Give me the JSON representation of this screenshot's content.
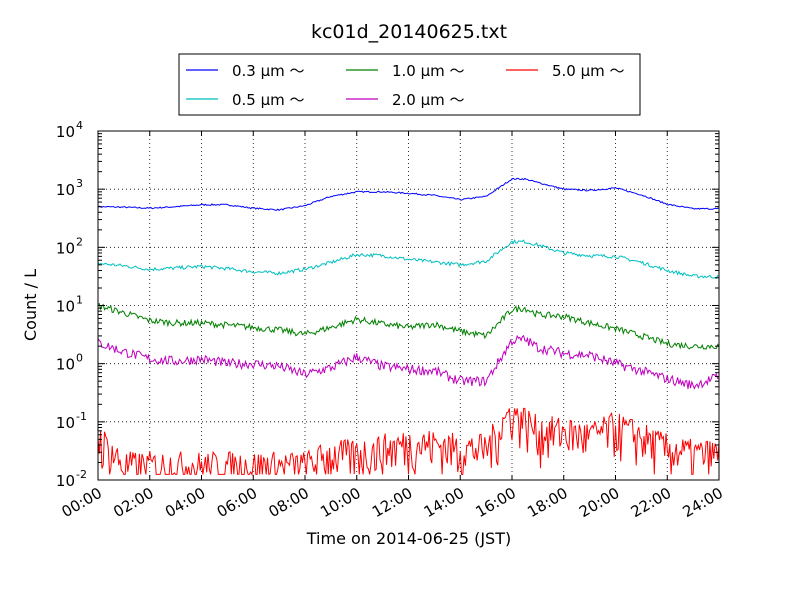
{
  "chart_data": {
    "type": "line",
    "title": "kc01d_20140625.txt",
    "xlabel": "Time on 2014-06-25 (JST)",
    "ylabel": "Count / L",
    "yscale": "log",
    "ylim": [
      0.01,
      10000
    ],
    "xlim": [
      0,
      24
    ],
    "grid": true,
    "legend_position": "top",
    "x_ticks": [
      "00:00",
      "02:00",
      "04:00",
      "06:00",
      "08:00",
      "10:00",
      "12:00",
      "14:00",
      "16:00",
      "18:00",
      "20:00",
      "22:00",
      "24:00"
    ],
    "y_ticks": [
      {
        "base": "10",
        "exp": "-2",
        "value": 0.01
      },
      {
        "base": "10",
        "exp": "-1",
        "value": 0.1
      },
      {
        "base": "10",
        "exp": "0",
        "value": 1
      },
      {
        "base": "10",
        "exp": "1",
        "value": 10
      },
      {
        "base": "10",
        "exp": "2",
        "value": 100
      },
      {
        "base": "10",
        "exp": "3",
        "value": 1000
      },
      {
        "base": "10",
        "exp": "4",
        "value": 10000
      }
    ],
    "x_hours": [
      0,
      1,
      2,
      3,
      4,
      5,
      6,
      7,
      8,
      9,
      10,
      11,
      12,
      13,
      14,
      15,
      16,
      16.5,
      17,
      18,
      19,
      20,
      21,
      22,
      23,
      24
    ],
    "series": [
      {
        "name": "0.3 μm ～",
        "color": "#0000ff",
        "values": [
          500,
          490,
          470,
          500,
          540,
          540,
          470,
          440,
          520,
          750,
          900,
          900,
          850,
          780,
          660,
          750,
          1500,
          1500,
          1300,
          1000,
          950,
          1050,
          800,
          550,
          460,
          460
        ]
      },
      {
        "name": "0.5 μm ～",
        "color": "#00bfbf",
        "values": [
          53,
          48,
          42,
          44,
          47,
          43,
          38,
          36,
          42,
          55,
          75,
          72,
          62,
          56,
          50,
          58,
          125,
          125,
          110,
          80,
          72,
          70,
          55,
          40,
          32,
          31
        ]
      },
      {
        "name": "1.0 μm ～",
        "color": "#008000",
        "values": [
          10,
          7.5,
          5.5,
          5,
          5,
          4.6,
          4.2,
          3.8,
          3.2,
          4.2,
          5.8,
          4.8,
          4.2,
          4.8,
          3.6,
          3.0,
          8.5,
          9,
          7.0,
          6.5,
          5.0,
          4.0,
          3.0,
          2.2,
          2.0,
          2.0
        ]
      },
      {
        "name": "2.0 μm ～",
        "color": "#bf00bf",
        "values": [
          2.3,
          1.6,
          1.2,
          1.1,
          1.2,
          1.0,
          1.0,
          0.9,
          0.65,
          0.85,
          1.3,
          0.9,
          0.8,
          0.75,
          0.5,
          0.5,
          2.5,
          2.6,
          1.9,
          1.5,
          1.4,
          1.0,
          0.75,
          0.55,
          0.42,
          0.6
        ]
      },
      {
        "name": "5.0 μm ～",
        "color": "#ff0000",
        "values": [
          0.04,
          0.0125,
          0.0125,
          0.0125,
          0.0125,
          0.0125,
          0.0125,
          0.0125,
          0.0125,
          0.02,
          0.02,
          0.025,
          0.03,
          0.03,
          0.025,
          0.025,
          0.12,
          0.08,
          0.05,
          0.05,
          0.04,
          0.06,
          0.04,
          0.025,
          0.02,
          0.02
        ]
      }
    ]
  }
}
